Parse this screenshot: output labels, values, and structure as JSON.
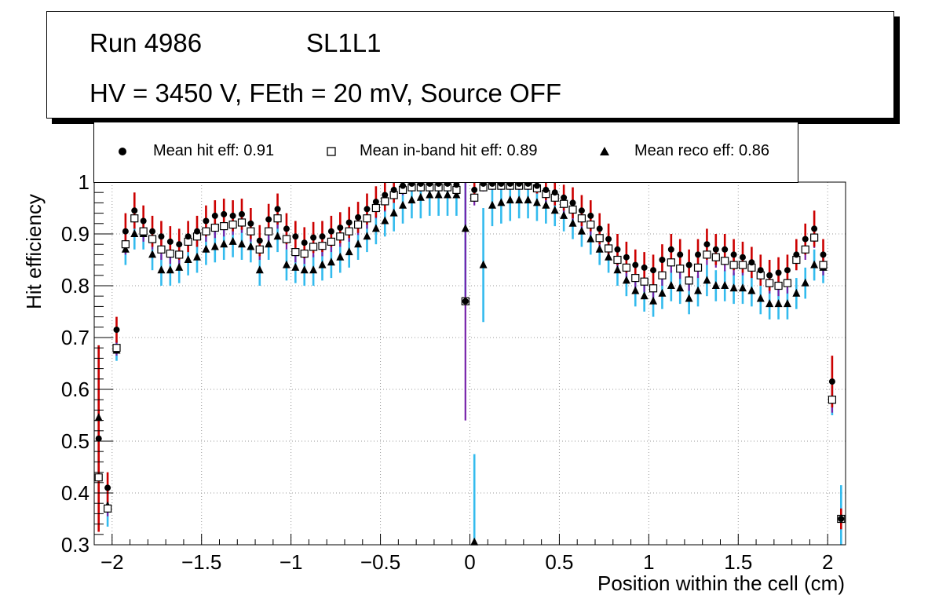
{
  "header": {
    "run": "Run 4986",
    "layer": "SL1L1",
    "conditions": "HV = 3450 V, FEth = 20 mV, Source OFF"
  },
  "legend": {
    "hit": "Mean hit  eff: 0.91",
    "inband": "Mean in-band hit eff: 0.89",
    "reco": "Mean reco eff: 0.86"
  },
  "colors": {
    "hit_err": "#cc0000",
    "inband_err": "#7722aa",
    "reco_err": "#33bbee",
    "marker": "#000000",
    "grid": "#999999"
  },
  "chart_data": {
    "type": "scatter",
    "xlabel": "Position within the cell (cm)",
    "ylabel": "Hit efficiency",
    "xlim": [
      -2.1,
      2.1
    ],
    "ylim": [
      0.3,
      1.0
    ],
    "xticks": [
      -2,
      -1.5,
      -1,
      -0.5,
      0,
      0.5,
      1,
      1.5,
      2
    ],
    "xtick_labels": [
      "−2",
      "−1.5",
      "−1",
      "−0.5",
      "0",
      "0.5",
      "1",
      "1.5",
      "2"
    ],
    "yticks": [
      0.3,
      0.4,
      0.5,
      0.6,
      0.7,
      0.8,
      0.9,
      1.0
    ],
    "ytick_labels": [
      "0.3",
      "0.4",
      "0.5",
      "0.6",
      "0.7",
      "0.8",
      "0.9",
      "1"
    ],
    "grid": true,
    "x": [
      -2.075,
      -2.025,
      -1.975,
      -1.925,
      -1.875,
      -1.825,
      -1.775,
      -1.725,
      -1.675,
      -1.625,
      -1.575,
      -1.525,
      -1.475,
      -1.425,
      -1.375,
      -1.325,
      -1.275,
      -1.225,
      -1.175,
      -1.125,
      -1.075,
      -1.025,
      -0.975,
      -0.925,
      -0.875,
      -0.825,
      -0.775,
      -0.725,
      -0.675,
      -0.625,
      -0.575,
      -0.525,
      -0.475,
      -0.425,
      -0.375,
      -0.325,
      -0.275,
      -0.225,
      -0.175,
      -0.125,
      -0.075,
      -0.025,
      0.025,
      0.075,
      0.125,
      0.175,
      0.225,
      0.275,
      0.325,
      0.375,
      0.425,
      0.475,
      0.525,
      0.575,
      0.625,
      0.675,
      0.725,
      0.775,
      0.825,
      0.875,
      0.925,
      0.975,
      1.025,
      1.075,
      1.125,
      1.175,
      1.225,
      1.275,
      1.325,
      1.375,
      1.425,
      1.475,
      1.525,
      1.575,
      1.625,
      1.675,
      1.725,
      1.775,
      1.825,
      1.875,
      1.925,
      1.975,
      2.025,
      2.075
    ],
    "series": [
      {
        "name": "Mean hit  eff: 0.91",
        "marker": "circle",
        "values": [
          0.505,
          0.41,
          0.715,
          0.905,
          0.945,
          0.925,
          0.905,
          0.895,
          0.885,
          0.88,
          0.895,
          0.905,
          0.925,
          0.935,
          0.938,
          0.935,
          0.938,
          0.92,
          0.887,
          0.928,
          0.948,
          0.91,
          0.895,
          0.883,
          0.893,
          0.895,
          0.905,
          0.912,
          0.922,
          0.932,
          0.948,
          0.962,
          0.975,
          0.985,
          0.993,
          0.997,
          0.997,
          0.997,
          0.997,
          0.997,
          0.995,
          0.77,
          0.985,
          0.997,
          0.997,
          0.997,
          0.997,
          0.997,
          0.997,
          0.993,
          0.985,
          0.98,
          0.97,
          0.96,
          0.945,
          0.935,
          0.91,
          0.89,
          0.87,
          0.855,
          0.84,
          0.835,
          0.83,
          0.85,
          0.87,
          0.86,
          0.84,
          0.86,
          0.88,
          0.87,
          0.87,
          0.86,
          0.855,
          0.845,
          0.83,
          0.82,
          0.825,
          0.83,
          0.86,
          0.89,
          0.91,
          0.86,
          0.615,
          0.35
        ],
        "errors": [
          0.18,
          0.03,
          0.025,
          0.035,
          0.035,
          0.03,
          0.03,
          0.03,
          0.03,
          0.03,
          0.03,
          0.03,
          0.03,
          0.03,
          0.03,
          0.03,
          0.03,
          0.03,
          0.03,
          0.03,
          0.03,
          0.03,
          0.03,
          0.03,
          0.03,
          0.03,
          0.03,
          0.03,
          0.03,
          0.03,
          0.03,
          0.03,
          0.03,
          0.025,
          0.015,
          0.01,
          0.01,
          0.01,
          0.01,
          0.01,
          0.015,
          0.0,
          0.02,
          0.01,
          0.01,
          0.01,
          0.01,
          0.01,
          0.01,
          0.015,
          0.02,
          0.025,
          0.025,
          0.03,
          0.03,
          0.03,
          0.03,
          0.03,
          0.03,
          0.03,
          0.03,
          0.03,
          0.03,
          0.03,
          0.03,
          0.03,
          0.03,
          0.03,
          0.03,
          0.03,
          0.03,
          0.03,
          0.03,
          0.03,
          0.03,
          0.03,
          0.03,
          0.03,
          0.03,
          0.03,
          0.035,
          0.03,
          0.05,
          0.02
        ]
      },
      {
        "name": "Mean in-band hit eff: 0.89",
        "marker": "open-square",
        "values": [
          0.43,
          0.37,
          0.68,
          0.88,
          0.93,
          0.905,
          0.89,
          0.87,
          0.862,
          0.86,
          0.885,
          0.895,
          0.905,
          0.912,
          0.915,
          0.918,
          0.922,
          0.905,
          0.87,
          0.905,
          0.93,
          0.89,
          0.865,
          0.862,
          0.875,
          0.877,
          0.885,
          0.895,
          0.905,
          0.918,
          0.93,
          0.95,
          0.963,
          0.975,
          0.985,
          0.99,
          0.99,
          0.99,
          0.99,
          0.99,
          0.985,
          0.77,
          0.97,
          0.99,
          0.993,
          0.993,
          0.993,
          0.993,
          0.993,
          0.988,
          0.977,
          0.97,
          0.958,
          0.947,
          0.93,
          0.918,
          0.892,
          0.872,
          0.85,
          0.835,
          0.815,
          0.808,
          0.795,
          0.82,
          0.845,
          0.833,
          0.81,
          0.835,
          0.86,
          0.855,
          0.848,
          0.84,
          0.84,
          0.835,
          0.82,
          0.805,
          0.8,
          0.805,
          0.85,
          0.87,
          0.893,
          0.84,
          0.58,
          0.35
        ],
        "errors": [
          0.1,
          0.015,
          0.015,
          0.02,
          0.02,
          0.02,
          0.02,
          0.02,
          0.02,
          0.02,
          0.02,
          0.02,
          0.02,
          0.02,
          0.02,
          0.02,
          0.02,
          0.02,
          0.02,
          0.02,
          0.02,
          0.02,
          0.02,
          0.02,
          0.02,
          0.02,
          0.02,
          0.02,
          0.02,
          0.02,
          0.02,
          0.02,
          0.02,
          0.015,
          0.01,
          0.008,
          0.008,
          0.008,
          0.008,
          0.008,
          0.01,
          0.23,
          0.015,
          0.008,
          0.008,
          0.008,
          0.008,
          0.008,
          0.008,
          0.01,
          0.015,
          0.015,
          0.02,
          0.02,
          0.02,
          0.02,
          0.02,
          0.02,
          0.02,
          0.02,
          0.02,
          0.02,
          0.02,
          0.02,
          0.02,
          0.02,
          0.02,
          0.02,
          0.02,
          0.02,
          0.02,
          0.02,
          0.02,
          0.02,
          0.02,
          0.02,
          0.02,
          0.02,
          0.02,
          0.02,
          0.02,
          0.02,
          0.025,
          0.02
        ]
      },
      {
        "name": "Mean reco eff: 0.86",
        "marker": "triangle",
        "values": [
          0.545,
          0.375,
          0.675,
          0.87,
          0.9,
          0.9,
          0.86,
          0.83,
          0.83,
          0.835,
          0.85,
          0.855,
          0.87,
          0.875,
          0.88,
          0.885,
          0.88,
          0.875,
          0.83,
          0.88,
          0.895,
          0.84,
          0.835,
          0.83,
          0.83,
          0.84,
          0.845,
          0.855,
          0.865,
          0.88,
          0.895,
          0.91,
          0.925,
          0.94,
          0.955,
          0.965,
          0.97,
          0.975,
          0.975,
          0.975,
          0.975,
          0.91,
          0.305,
          0.84,
          0.955,
          0.96,
          0.965,
          0.965,
          0.965,
          0.96,
          0.955,
          0.945,
          0.935,
          0.92,
          0.905,
          0.89,
          0.87,
          0.855,
          0.83,
          0.81,
          0.79,
          0.78,
          0.77,
          0.785,
          0.8,
          0.795,
          0.775,
          0.79,
          0.81,
          0.8,
          0.8,
          0.795,
          0.795,
          0.79,
          0.775,
          0.765,
          0.765,
          0.765,
          0.785,
          0.805,
          0.84,
          0.835,
          0.58,
          0.35
        ],
        "errors": [
          0.14,
          0.04,
          0.02,
          0.03,
          0.03,
          0.03,
          0.03,
          0.03,
          0.03,
          0.03,
          0.03,
          0.03,
          0.03,
          0.03,
          0.03,
          0.03,
          0.03,
          0.03,
          0.03,
          0.03,
          0.03,
          0.03,
          0.03,
          0.03,
          0.03,
          0.03,
          0.03,
          0.03,
          0.03,
          0.03,
          0.03,
          0.03,
          0.03,
          0.035,
          0.035,
          0.035,
          0.04,
          0.04,
          0.04,
          0.04,
          0.04,
          0.13,
          0.17,
          0.11,
          0.04,
          0.04,
          0.04,
          0.035,
          0.035,
          0.035,
          0.035,
          0.03,
          0.03,
          0.03,
          0.03,
          0.03,
          0.03,
          0.03,
          0.03,
          0.03,
          0.03,
          0.03,
          0.03,
          0.03,
          0.03,
          0.03,
          0.03,
          0.03,
          0.03,
          0.03,
          0.03,
          0.03,
          0.03,
          0.03,
          0.03,
          0.03,
          0.03,
          0.03,
          0.03,
          0.03,
          0.03,
          0.03,
          0.03,
          0.065
        ]
      }
    ]
  }
}
